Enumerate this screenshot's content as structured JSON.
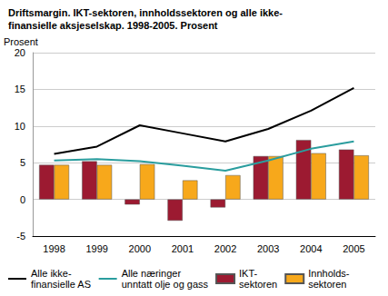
{
  "chart_data": {
    "type": "bar",
    "title": "Driftsmargin. IKT-sektoren, innholdssektoren og alle ikke-\nfinansielle aksjeselskap. 1998-2005. Prosent",
    "ylabel": "Prosent",
    "categories": [
      "1998",
      "1999",
      "2000",
      "2001",
      "2002",
      "2003",
      "2004",
      "2005"
    ],
    "series": [
      {
        "name": "Alle ikke-\nfinansielle AS",
        "type": "line",
        "color": "#000000",
        "values": [
          6.2,
          7.2,
          10.1,
          9.0,
          7.9,
          9.6,
          12.1,
          15.2
        ]
      },
      {
        "name": "Alle næringer\nunntatt olje og gass",
        "type": "line",
        "color": "#2a9d9e",
        "values": [
          5.3,
          5.5,
          5.2,
          4.6,
          3.9,
          5.3,
          6.9,
          7.9
        ]
      },
      {
        "name": "IKT-\nsektoren",
        "type": "bar",
        "color": "#9c1a31",
        "values": [
          4.7,
          5.2,
          -0.7,
          -2.9,
          -1.1,
          5.9,
          8.1,
          6.8
        ]
      },
      {
        "name": "Innholds-\nsektoren",
        "type": "bar",
        "color": "#f7a81b",
        "values": [
          4.7,
          4.7,
          4.8,
          2.6,
          3.3,
          5.9,
          6.3,
          6.0
        ]
      }
    ],
    "ylim": [
      -5,
      20
    ],
    "yticks": [
      -5,
      0,
      5,
      10,
      15,
      20
    ],
    "grid": true,
    "legend": "bottom"
  }
}
